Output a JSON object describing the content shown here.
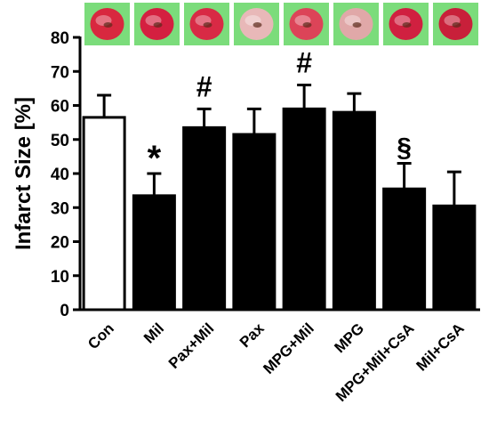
{
  "chart_data": {
    "type": "bar",
    "ylabel": "Infarct Size [%]",
    "xlabel": "",
    "ylim": [
      0,
      80
    ],
    "yticks": [
      0,
      10,
      20,
      30,
      40,
      50,
      60,
      70,
      80
    ],
    "categories": [
      "Con",
      "Mil",
      "Pax+Mil",
      "Pax",
      "MPG+Mil",
      "MPG",
      "MPG+Mil+CsA",
      "Mil+CsA"
    ],
    "values": [
      56.5,
      33.5,
      53.5,
      51.5,
      59,
      58,
      35.5,
      30.5
    ],
    "errors": [
      6.5,
      6.5,
      5.5,
      7.5,
      7,
      5.5,
      7.5,
      10
    ],
    "bar_fill": [
      "#ffffff",
      "#000000",
      "#000000",
      "#000000",
      "#000000",
      "#000000",
      "#000000",
      "#000000"
    ],
    "annotations": [
      "",
      "*",
      "#",
      "",
      "#",
      "",
      "§",
      ""
    ],
    "heart_images": {
      "background": "#7bdc7b",
      "tissue_colors": [
        "#d8283f",
        "#d42040",
        "#d82a45",
        "#e8b8b8",
        "#dc4458",
        "#e0a8a8",
        "#d02040",
        "#c8203a"
      ]
    },
    "grid": false,
    "legend": "none"
  }
}
